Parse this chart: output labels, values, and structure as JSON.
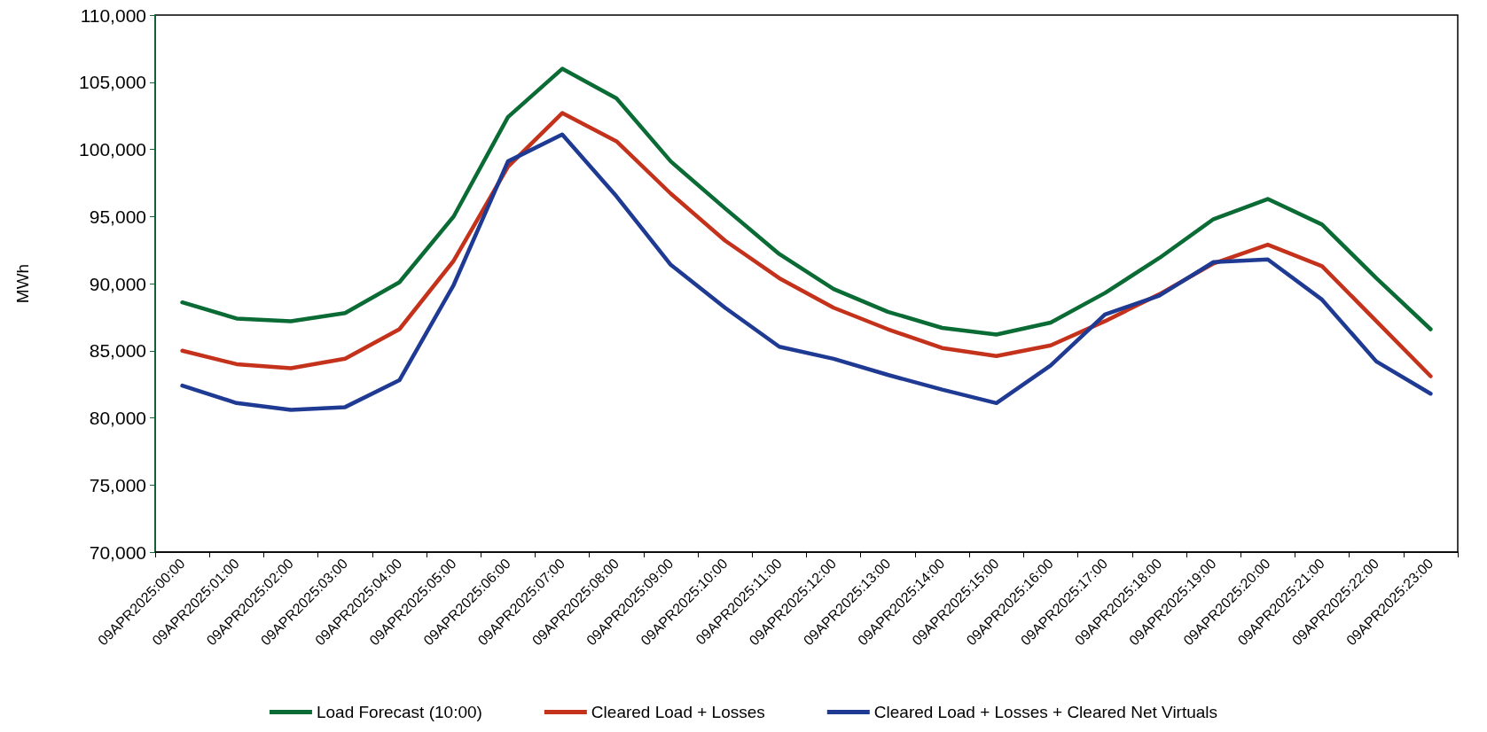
{
  "chart_data": {
    "type": "line",
    "ylabel": "MWh",
    "categories": [
      "09APR2025:00:00",
      "09APR2025:01:00",
      "09APR2025:02:00",
      "09APR2025:03:00",
      "09APR2025:04:00",
      "09APR2025:05:00",
      "09APR2025:06:00",
      "09APR2025:07:00",
      "09APR2025:08:00",
      "09APR2025:09:00",
      "09APR2025:10:00",
      "09APR2025:11:00",
      "09APR2025:12:00",
      "09APR2025:13:00",
      "09APR2025:14:00",
      "09APR2025:15:00",
      "09APR2025:16:00",
      "09APR2025:17:00",
      "09APR2025:18:00",
      "09APR2025:19:00",
      "09APR2025:20:00",
      "09APR2025:21:00",
      "09APR2025:22:00",
      "09APR2025:23:00"
    ],
    "series": [
      {
        "name": "Load Forecast (10:00)",
        "color": "#0a6b35",
        "values": [
          88600,
          87400,
          87200,
          87800,
          90100,
          95000,
          102400,
          106000,
          103800,
          99100,
          95600,
          92200,
          89600,
          87900,
          86700,
          86200,
          87100,
          89300,
          91900,
          94800,
          96300,
          94400,
          90400,
          86600
        ]
      },
      {
        "name": "Cleared Load + Losses",
        "color": "#c4321c",
        "values": [
          85000,
          84000,
          83700,
          84400,
          86600,
          91700,
          98700,
          102700,
          100600,
          96700,
          93200,
          90400,
          88200,
          86600,
          85200,
          84600,
          85400,
          87200,
          89200,
          91500,
          92900,
          91300,
          87200,
          83100
        ]
      },
      {
        "name": "Cleared Load + Losses + Cleared Net Virtuals",
        "color": "#1f3a93",
        "values": [
          82400,
          81100,
          80600,
          80800,
          82800,
          89900,
          99100,
          101100,
          96500,
          91400,
          88200,
          85300,
          84400,
          83200,
          82100,
          81100,
          83900,
          87700,
          89100,
          91600,
          91800,
          88800,
          84200,
          81800
        ]
      }
    ],
    "ylim": [
      70000,
      110000
    ],
    "yticks": [
      {
        "value": 70000,
        "label": "70,000"
      },
      {
        "value": 75000,
        "label": "75,000"
      },
      {
        "value": 80000,
        "label": "80,000"
      },
      {
        "value": 85000,
        "label": "85,000"
      },
      {
        "value": 90000,
        "label": "90,000"
      },
      {
        "value": 95000,
        "label": "95,000"
      },
      {
        "value": 100000,
        "label": "100,000"
      },
      {
        "value": 105000,
        "label": "105,000"
      },
      {
        "value": 110000,
        "label": "110,000"
      }
    ],
    "grid": false,
    "legend": "bottom",
    "marker": "none",
    "line_style": "solid"
  }
}
